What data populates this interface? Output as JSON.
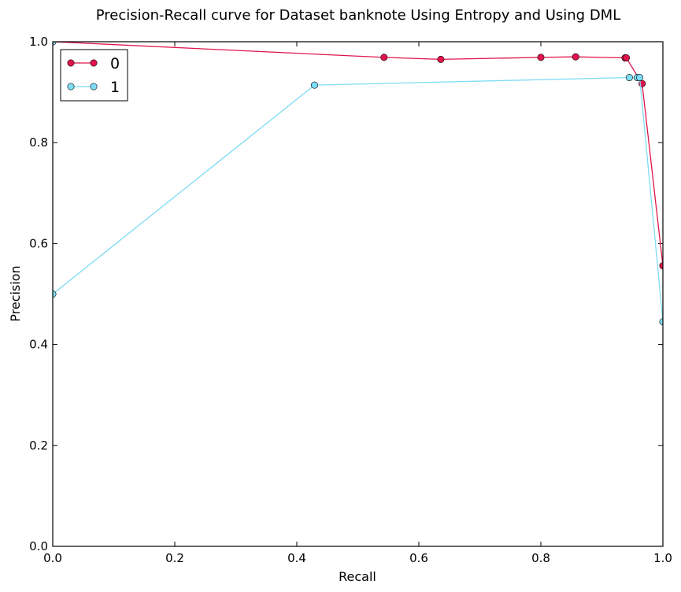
{
  "chart_data": {
    "type": "line",
    "title": "Precision-Recall curve for Dataset banknote Using Entropy and Using DML",
    "xlabel": "Recall",
    "ylabel": "Precision",
    "xlim": [
      0,
      1
    ],
    "ylim": [
      0,
      1
    ],
    "xticks": [
      "0.0",
      "0.2",
      "0.4",
      "0.6",
      "0.8",
      "1.0"
    ],
    "yticks": [
      "0.0",
      "0.2",
      "0.4",
      "0.6",
      "0.8",
      "1.0"
    ],
    "grid": false,
    "legend": "top-left",
    "series": [
      {
        "name": "0",
        "color": "#e0144c",
        "x": [
          0.0,
          0.543,
          0.636,
          0.8,
          0.857,
          0.938,
          0.94,
          0.966,
          1.0
        ],
        "y": [
          1.0,
          0.969,
          0.965,
          0.969,
          0.97,
          0.968,
          0.968,
          0.917,
          0.556
        ]
      },
      {
        "name": "1",
        "color": "#7fdcf5",
        "x": [
          0.0,
          0.0,
          0.429,
          0.945,
          0.958,
          0.962,
          1.0
        ],
        "y": [
          1.0,
          0.5,
          0.914,
          0.929,
          0.929,
          0.929,
          0.445
        ]
      }
    ]
  }
}
